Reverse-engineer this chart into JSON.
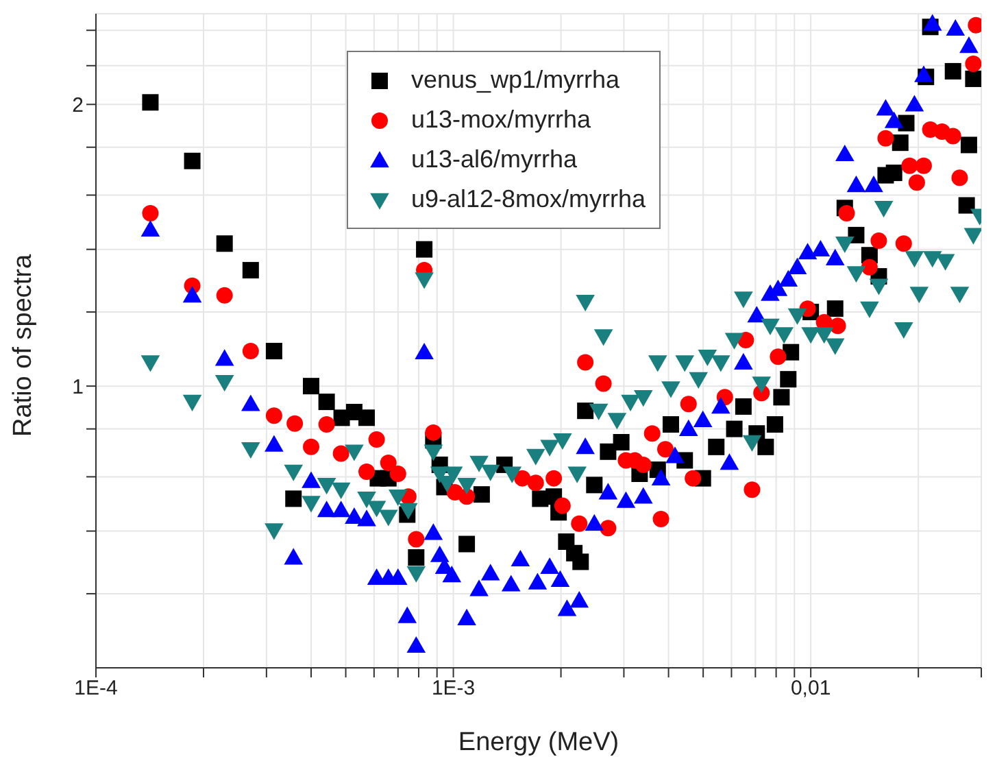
{
  "chart_data": {
    "type": "scatter",
    "xlabel": "Energy (MeV)",
    "ylabel": "Ratio of spectra",
    "log": "xy",
    "grid": true,
    "legend": "top",
    "xlim": [
      0.0001,
      0.03
    ],
    "ylim": [
      0.5,
      2.5
    ],
    "xticks": [
      {
        "value": 0.0001,
        "label": "1E-4"
      },
      {
        "value": 0.0002,
        "label": null
      },
      {
        "value": 0.0003,
        "label": null
      },
      {
        "value": 0.0004,
        "label": null
      },
      {
        "value": 0.0005,
        "label": null
      },
      {
        "value": 0.0006,
        "label": null
      },
      {
        "value": 0.0007,
        "label": null
      },
      {
        "value": 0.0008,
        "label": null
      },
      {
        "value": 0.0009,
        "label": null
      },
      {
        "value": 0.001,
        "label": "1E-3"
      },
      {
        "value": 0.002,
        "label": null
      },
      {
        "value": 0.003,
        "label": null
      },
      {
        "value": 0.004,
        "label": null
      },
      {
        "value": 0.005,
        "label": null
      },
      {
        "value": 0.006,
        "label": null
      },
      {
        "value": 0.007,
        "label": null
      },
      {
        "value": 0.008,
        "label": null
      },
      {
        "value": 0.009,
        "label": null
      },
      {
        "value": 0.01,
        "label": "0,01"
      },
      {
        "value": 0.02,
        "label": null
      },
      {
        "value": 0.03,
        "label": null
      }
    ],
    "yticks": [
      {
        "value": 0.6,
        "label": null
      },
      {
        "value": 0.7,
        "label": null
      },
      {
        "value": 0.8,
        "label": null
      },
      {
        "value": 0.9,
        "label": null
      },
      1,
      {
        "value": 1.2,
        "label": null
      },
      {
        "value": 1.4,
        "label": null
      },
      {
        "value": 1.6,
        "label": null
      },
      {
        "value": 1.8,
        "label": null
      },
      2,
      {
        "value": 2.2,
        "label": null
      },
      {
        "value": 2.4,
        "label": null
      }
    ],
    "series": [
      {
        "name": "venus_wp1/myrrha",
        "color": "#000000",
        "marker": "square",
        "x": [
          0.000142,
          0.000186,
          0.000229,
          0.000271,
          0.000315,
          0.0004,
          0.000442,
          0.000487,
          0.000528,
          0.000572,
          0.000615,
          0.000658,
          0.000357,
          0.000743,
          0.000787,
          0.000829,
          0.000879,
          0.000916,
          0.000944,
          0.00109,
          0.0012,
          0.00139,
          0.00175,
          0.00191,
          0.00197,
          0.00207,
          0.00218,
          0.00227,
          0.00234,
          0.00248,
          0.00271,
          0.00295,
          0.00332,
          0.00373,
          0.00406,
          0.00444,
          0.00499,
          0.00544,
          0.00611,
          0.00648,
          0.00706,
          0.00748,
          0.00794,
          0.00828,
          0.00865,
          0.0088,
          0.01,
          0.0117,
          0.01245,
          0.0134,
          0.0146,
          0.0155,
          0.0162,
          0.0171,
          0.0185,
          0.0178,
          0.021,
          0.0216,
          0.025,
          0.0277,
          0.0273,
          0.0285
        ],
        "values": [
          2.01,
          1.74,
          1.42,
          1.33,
          1.09,
          1.0,
          0.962,
          0.925,
          0.938,
          0.925,
          0.797,
          0.797,
          0.758,
          0.729,
          0.656,
          1.4,
          0.875,
          0.824,
          0.78,
          0.678,
          0.766,
          0.824,
          0.758,
          0.762,
          0.733,
          0.682,
          0.663,
          0.649,
          0.941,
          0.784,
          0.851,
          0.871,
          0.806,
          0.814,
          0.91,
          0.833,
          0.797,
          0.861,
          0.9,
          0.951,
          0.89,
          0.861,
          0.91,
          0.973,
          1.017,
          1.087,
          1.2,
          1.21,
          1.55,
          1.45,
          1.38,
          1.31,
          1.68,
          1.69,
          1.91,
          1.82,
          2.14,
          2.42,
          2.17,
          1.81,
          1.56,
          2.13
        ]
      },
      {
        "name": "u13-mox/myrrha",
        "color": "#ff0000",
        "marker": "circle",
        "x": [
          0.000142,
          0.000186,
          0.000229,
          0.000271,
          0.000315,
          0.00036,
          0.0004,
          0.000442,
          0.000485,
          0.000572,
          0.00061,
          0.000658,
          0.0007,
          0.000748,
          0.000787,
          0.000829,
          0.000879,
          0.00101,
          0.00109,
          0.00156,
          0.0017,
          0.00191,
          0.00202,
          0.00225,
          0.00234,
          0.00263,
          0.00271,
          0.00304,
          0.00322,
          0.0034,
          0.0036,
          0.00381,
          0.00392,
          0.00455,
          0.00468,
          0.00575,
          0.00658,
          0.00685,
          0.00728,
          0.0081,
          0.0098,
          0.0109,
          0.0119,
          0.0126,
          0.0155,
          0.0146,
          0.0182,
          0.0162,
          0.0189,
          0.0198,
          0.0207,
          0.0216,
          0.0233,
          0.025,
          0.0261,
          0.0285,
          0.029
        ],
        "values": [
          1.53,
          1.28,
          1.25,
          1.09,
          0.93,
          0.912,
          0.861,
          0.91,
          0.847,
          0.81,
          0.877,
          0.828,
          0.806,
          0.762,
          0.686,
          1.33,
          0.892,
          0.77,
          0.762,
          0.797,
          0.788,
          0.797,
          0.745,
          0.713,
          1.06,
          1.006,
          0.705,
          0.833,
          0.833,
          0.824,
          0.89,
          0.721,
          0.856,
          0.957,
          0.797,
          0.973,
          1.12,
          0.775,
          0.983,
          1.075,
          1.21,
          1.17,
          1.16,
          1.53,
          1.43,
          1.34,
          1.42,
          1.84,
          1.72,
          1.65,
          1.72,
          1.88,
          1.87,
          1.85,
          1.67,
          2.21,
          2.43
        ]
      },
      {
        "name": "u13-al6/myrrha",
        "color": "#0000ff",
        "marker": "triangle",
        "x": [
          0.000142,
          0.000186,
          0.000229,
          0.000271,
          0.000315,
          0.000357,
          0.0004,
          0.000442,
          0.000485,
          0.000528,
          0.000572,
          0.00061,
          0.000658,
          0.0007,
          0.000743,
          0.000787,
          0.000829,
          0.000879,
          0.000916,
          0.000944,
          0.00099,
          0.00109,
          0.00118,
          0.00127,
          0.00145,
          0.00154,
          0.00172,
          0.00186,
          0.00199,
          0.00208,
          0.00225,
          0.00234,
          0.00248,
          0.00271,
          0.00304,
          0.0034,
          0.00381,
          0.00417,
          0.00455,
          0.00499,
          0.0056,
          0.00592,
          0.00648,
          0.00706,
          0.0077,
          0.0081,
          0.00865,
          0.00917,
          0.0098,
          0.01065,
          0.0117,
          0.01245,
          0.0134,
          0.015,
          0.0162,
          0.0171,
          0.0195,
          0.0207,
          0.0219,
          0.0254,
          0.0277
        ],
        "values": [
          1.47,
          1.25,
          1.07,
          0.957,
          0.866,
          0.656,
          0.792,
          0.737,
          0.737,
          0.725,
          0.721,
          0.624,
          0.624,
          0.624,
          0.568,
          0.528,
          1.087,
          0.697,
          0.66,
          0.641,
          0.628,
          0.565,
          0.607,
          0.631,
          0.614,
          0.653,
          0.617,
          0.641,
          0.621,
          0.578,
          0.59,
          0.861,
          0.713,
          0.77,
          0.754,
          0.762,
          0.797,
          0.842,
          0.9,
          0.92,
          0.951,
          0.828,
          1.06,
          1.19,
          1.255,
          1.27,
          1.3,
          1.34,
          1.39,
          1.4,
          1.37,
          1.77,
          1.64,
          1.64,
          1.98,
          1.92,
          2.0,
          2.15,
          2.44,
          2.41,
          2.31
        ]
      },
      {
        "name": "u9-al12-8mox/myrrha",
        "color": "#1a7f7f",
        "marker": "triangle-down",
        "x": [
          0.000142,
          0.000186,
          0.000229,
          0.000271,
          0.000315,
          0.000357,
          0.0004,
          0.000442,
          0.000485,
          0.000528,
          0.000572,
          0.00061,
          0.000658,
          0.0007,
          0.000748,
          0.000787,
          0.000829,
          0.000879,
          0.000916,
          0.00096,
          0.001,
          0.00109,
          0.00118,
          0.00127,
          0.00146,
          0.0017,
          0.00186,
          0.00202,
          0.00222,
          0.00234,
          0.00263,
          0.00255,
          0.00287,
          0.00313,
          0.0034,
          0.00373,
          0.00406,
          0.00444,
          0.00485,
          0.00514,
          0.0056,
          0.00611,
          0.00648,
          0.00685,
          0.00728,
          0.0077,
          0.00842,
          0.00917,
          0.01,
          0.0109,
          0.0117,
          0.01245,
          0.0134,
          0.0155,
          0.0146,
          0.016,
          0.0182,
          0.0195,
          0.0201,
          0.0219,
          0.0238,
          0.0261,
          0.0285,
          0.0297
        ],
        "values": [
          1.06,
          0.962,
          1.01,
          0.856,
          0.701,
          0.81,
          0.75,
          0.784,
          0.775,
          0.851,
          0.758,
          0.741,
          0.725,
          0.762,
          0.737,
          0.631,
          1.3,
          0.851,
          0.806,
          0.788,
          0.806,
          0.784,
          0.828,
          0.81,
          0.806,
          0.842,
          0.861,
          0.875,
          0.806,
          1.23,
          1.13,
          0.941,
          0.92,
          0.962,
          0.973,
          1.06,
          0.994,
          1.06,
          1.017,
          1.075,
          1.06,
          1.12,
          1.24,
          0.871,
          1.006,
          1.16,
          1.136,
          1.19,
          1.136,
          1.136,
          1.105,
          1.42,
          1.32,
          1.28,
          1.21,
          1.55,
          1.15,
          1.37,
          1.255,
          1.37,
          1.36,
          1.255,
          1.45,
          1.52
        ]
      }
    ]
  }
}
